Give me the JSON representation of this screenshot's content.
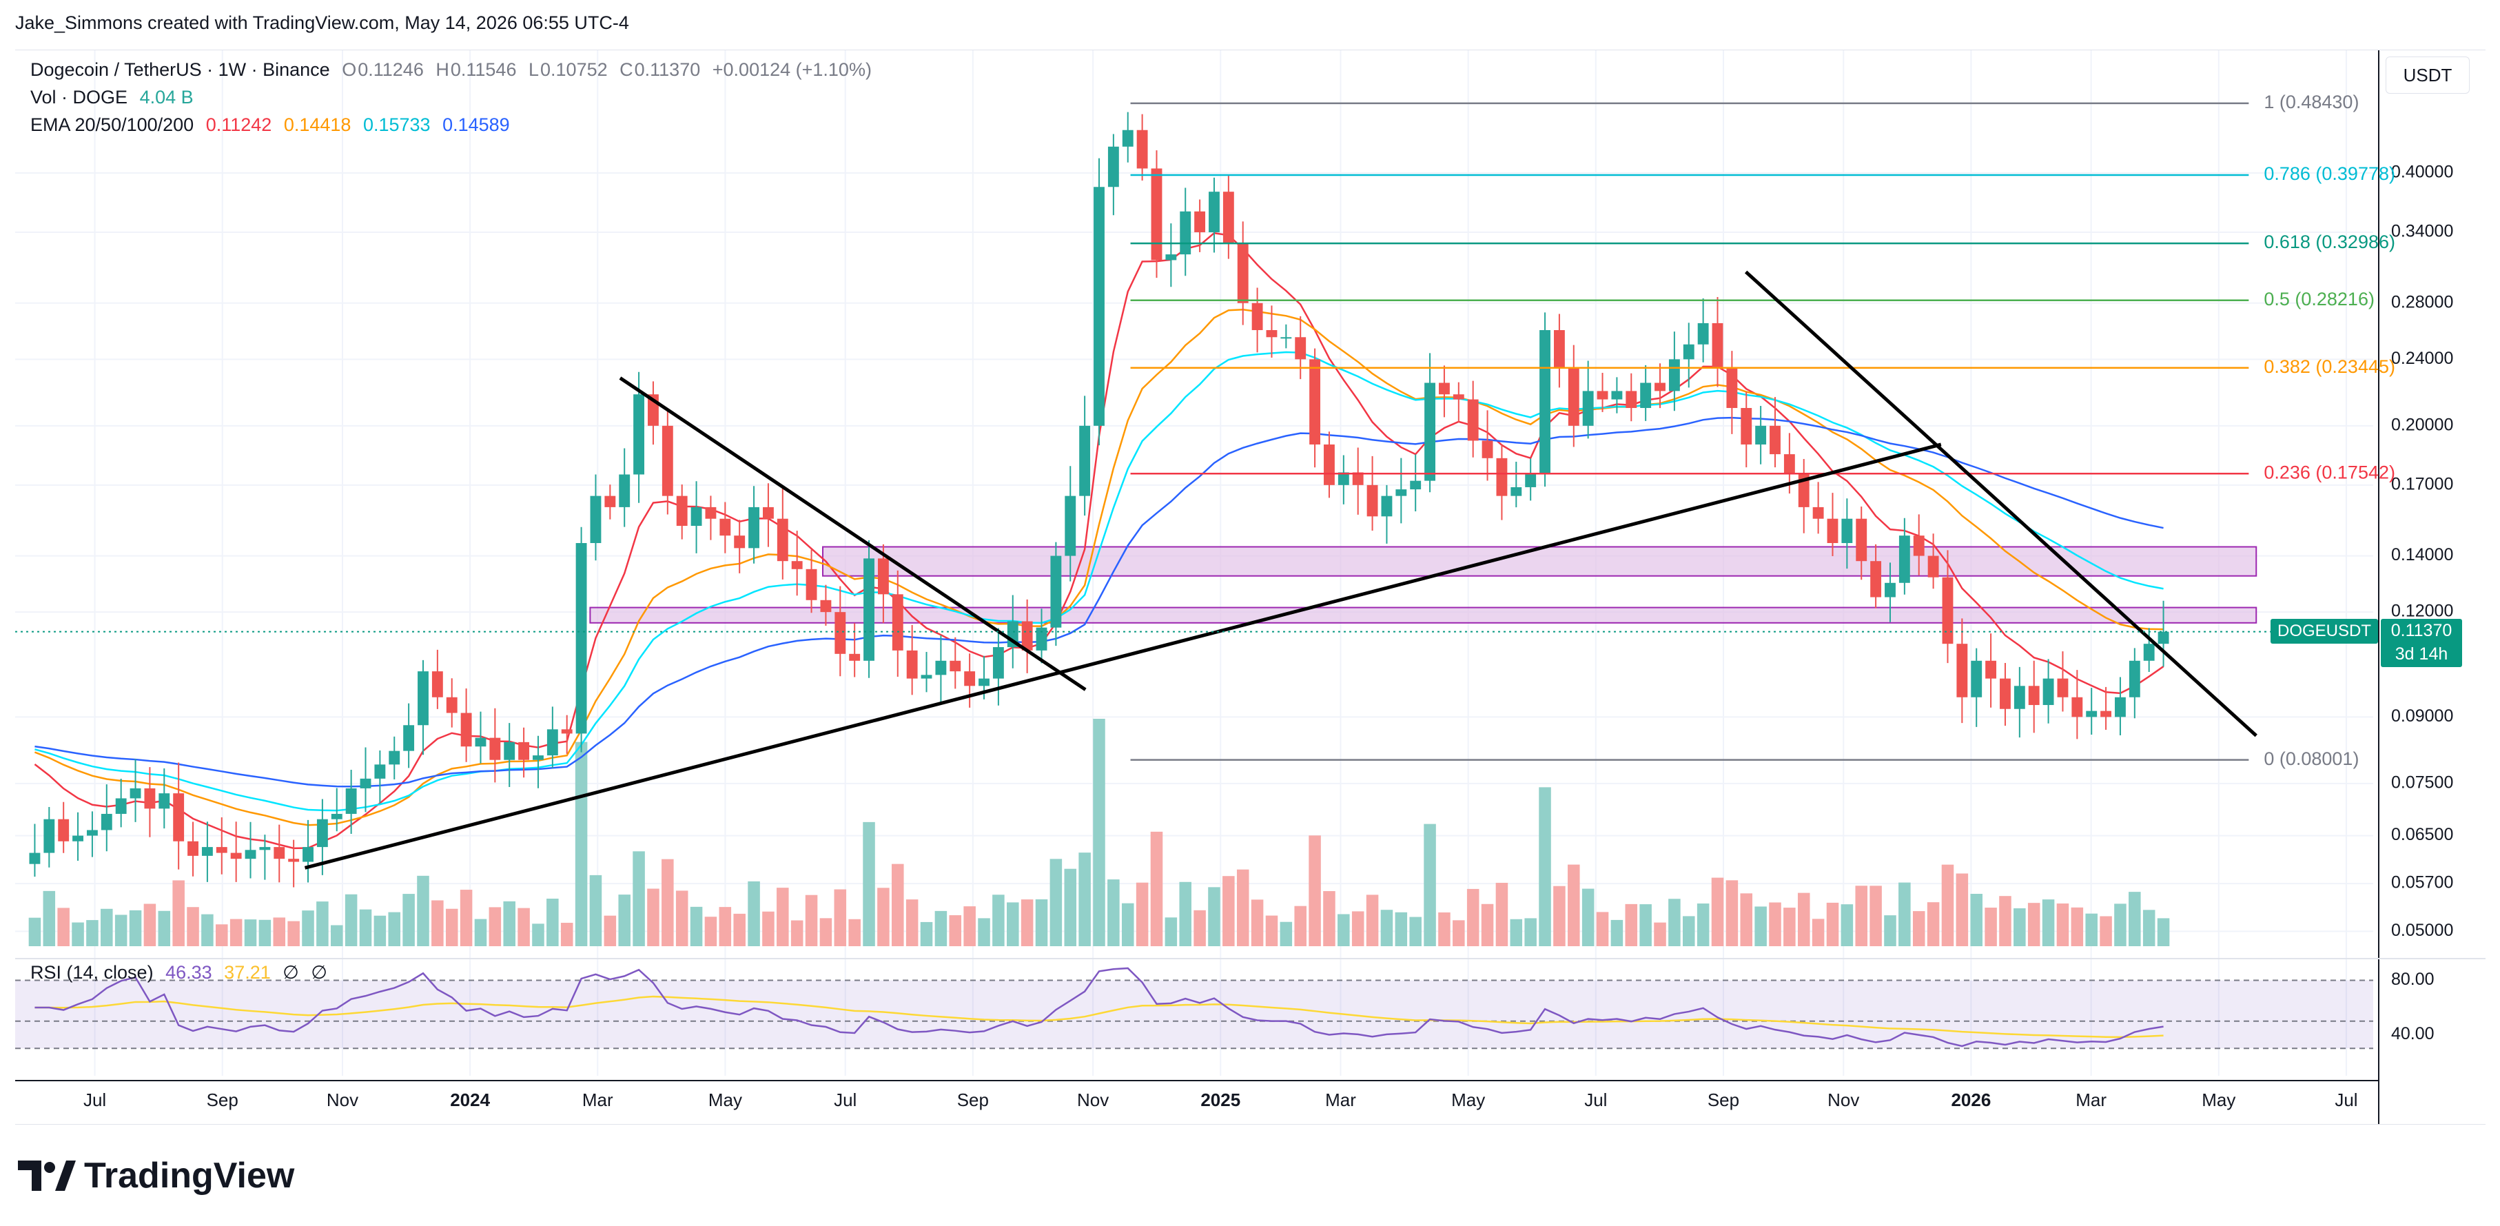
{
  "credit": "Jake_Simmons created with TradingView.com, May 14, 2026 06:55 UTC-4",
  "legend": {
    "pair": "Dogecoin / TetherUS · 1W · Binance",
    "o_label": "O",
    "o_val": "0.11246",
    "h_label": "H",
    "h_val": "0.11546",
    "l_label": "L",
    "l_val": "0.10752",
    "c_label": "C",
    "c_val": "0.11370",
    "change": "+0.00124 (+1.10%)",
    "vol_label": "Vol · DOGE",
    "vol_val": "4.04 B",
    "ema_label": "EMA 20/50/100/200",
    "ema20": "0.11242",
    "ema50": "0.14418",
    "ema100": "0.15733",
    "ema200": "0.14589",
    "rsi_label": "RSI (14, close)",
    "rsi_val": "46.33",
    "rsi_ma": "37.21",
    "rsi_sym1": "∅",
    "rsi_sym2": "∅"
  },
  "currency_button": "USDT",
  "price_tag": {
    "symbol": "DOGEUSDT",
    "price": "0.11370",
    "countdown": "3d 14h"
  },
  "footer": {
    "brand": "TradingView"
  },
  "colors": {
    "up": "#26a69a",
    "down": "#ef5350",
    "vol_up": "#92d0c9",
    "vol_down": "#f6a9a7",
    "ema20": "#f23645",
    "ema50": "#ff9800",
    "ema100": "#00e5ff",
    "ema200": "#2962ff",
    "rsi": "#7e57c2",
    "rsi_ma": "#fdd835",
    "zone": "#e1bee7",
    "zone_border": "#9c27b0",
    "trendline": "#000000"
  },
  "chart_data": {
    "type": "candlestick",
    "title": "Dogecoin / TetherUS · 1W · Binance",
    "y_scale": "log",
    "ylim": [
      0.048,
      0.56
    ],
    "y_ticks": [
      "0.40000",
      "0.34000",
      "0.28000",
      "0.24000",
      "0.20000",
      "0.17000",
      "0.14000",
      "0.12000",
      "0.09000",
      "0.07500",
      "0.06500",
      "0.05700",
      "0.05000"
    ],
    "x_ticks": [
      "Jul",
      "Sep",
      "Nov",
      "2024",
      "Mar",
      "May",
      "Jul",
      "Sep",
      "Nov",
      "2025",
      "Mar",
      "May",
      "Jul",
      "Sep",
      "Nov",
      "2026",
      "Mar",
      "May",
      "Jul"
    ],
    "fib_levels": [
      {
        "label": "1 (0.48430)",
        "value": 0.4843,
        "color": "#787b86"
      },
      {
        "label": "0.786 (0.39778)",
        "value": 0.39778,
        "color": "#00bcd4"
      },
      {
        "label": "0.618 (0.32986)",
        "value": 0.32986,
        "color": "#089981"
      },
      {
        "label": "0.5 (0.28216)",
        "value": 0.28216,
        "color": "#4caf50"
      },
      {
        "label": "0.382 (0.23445)",
        "value": 0.23445,
        "color": "#ff9800"
      },
      {
        "label": "0.236 (0.17542)",
        "value": 0.17542,
        "color": "#f23645"
      },
      {
        "label": "0 (0.08001)",
        "value": 0.08001,
        "color": "#787b86"
      }
    ],
    "zones": [
      {
        "from": 0.1325,
        "to": 0.1435
      },
      {
        "from": 0.1165,
        "to": 0.1215
      }
    ],
    "trendlines": [
      {
        "x1": 2023.78,
        "y1": 0.0595,
        "x2": 2025.96,
        "y2": 0.19
      },
      {
        "x1": 2024.2,
        "y1": 0.228,
        "x2": 2024.82,
        "y2": 0.097
      },
      {
        "x1": 2025.7,
        "y1": 0.305,
        "x2": 2026.38,
        "y2": 0.0855
      }
    ],
    "current_price": 0.1137,
    "series": [
      {
        "name": "DOGEUSDT",
        "closes": [
          0.062,
          0.068,
          0.064,
          0.065,
          0.066,
          0.069,
          0.072,
          0.074,
          0.07,
          0.073,
          0.064,
          0.0615,
          0.063,
          0.062,
          0.061,
          0.0625,
          0.063,
          0.061,
          0.0605,
          0.063,
          0.068,
          0.069,
          0.074,
          0.076,
          0.079,
          0.082,
          0.088,
          0.102,
          0.095,
          0.091,
          0.083,
          0.085,
          0.08,
          0.084,
          0.08,
          0.081,
          0.087,
          0.086,
          0.145,
          0.165,
          0.16,
          0.175,
          0.218,
          0.2,
          0.165,
          0.152,
          0.16,
          0.155,
          0.148,
          0.143,
          0.16,
          0.155,
          0.138,
          0.135,
          0.124,
          0.12,
          0.107,
          0.105,
          0.139,
          0.126,
          0.108,
          0.1,
          0.101,
          0.105,
          0.102,
          0.098,
          0.1,
          0.109,
          0.117,
          0.108,
          0.115,
          0.14,
          0.165,
          0.2,
          0.385,
          0.43,
          0.45,
          0.405,
          0.315,
          0.32,
          0.36,
          0.34,
          0.38,
          0.33,
          0.28,
          0.26,
          0.255,
          0.255,
          0.24,
          0.19,
          0.17,
          0.176,
          0.17,
          0.156,
          0.165,
          0.168,
          0.172,
          0.225,
          0.218,
          0.215,
          0.192,
          0.183,
          0.165,
          0.169,
          0.175,
          0.26,
          0.235,
          0.2,
          0.22,
          0.215,
          0.22,
          0.21,
          0.225,
          0.22,
          0.24,
          0.25,
          0.265,
          0.235,
          0.21,
          0.19,
          0.2,
          0.185,
          0.175,
          0.16,
          0.155,
          0.145,
          0.155,
          0.138,
          0.125,
          0.13,
          0.148,
          0.14,
          0.132,
          0.11,
          0.095,
          0.105,
          0.1,
          0.092,
          0.098,
          0.093,
          0.1,
          0.095,
          0.09,
          0.0915,
          0.09,
          0.095,
          0.105,
          0.11,
          0.1137
        ]
      },
      {
        "name": "EMA 20",
        "values": "computed"
      },
      {
        "name": "EMA 50",
        "values": "computed"
      },
      {
        "name": "EMA 100",
        "values": "computed"
      },
      {
        "name": "EMA 200",
        "values": "computed"
      }
    ],
    "rsi_ticks": [
      "80.00",
      "40.00"
    ]
  }
}
